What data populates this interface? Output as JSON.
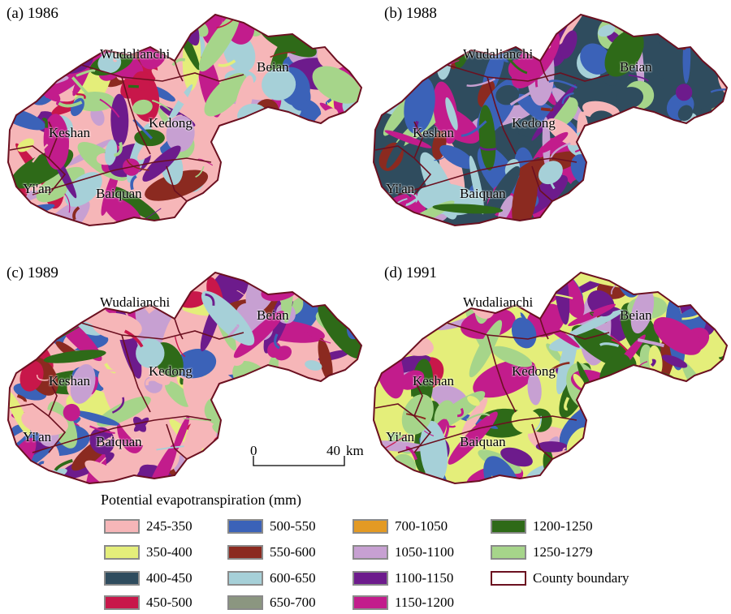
{
  "panels": [
    {
      "title": "(a) 1986",
      "scheme": "a"
    },
    {
      "title": "(b) 1988",
      "scheme": "b"
    },
    {
      "title": "(c) 1989",
      "scheme": "c"
    },
    {
      "title": "(d) 1991",
      "scheme": "d"
    }
  ],
  "counties": [
    "Wudalianchi",
    "Beian",
    "Keshan",
    "Kedong",
    "Yi'an",
    "Baiquan"
  ],
  "scalebar": {
    "start": "0",
    "end": "40",
    "unit": "km"
  },
  "legend": {
    "title": "Potential evapotranspiration (mm)",
    "items": [
      {
        "label": "245-350",
        "color": "#f6b6b8"
      },
      {
        "label": "350-400",
        "color": "#e4ee7a"
      },
      {
        "label": "400-450",
        "color": "#2f4c5e"
      },
      {
        "label": "450-500",
        "color": "#c8174a"
      },
      {
        "label": "500-550",
        "color": "#3b62b8"
      },
      {
        "label": "550-600",
        "color": "#8b2a20"
      },
      {
        "label": "600-650",
        "color": "#a6d0d8"
      },
      {
        "label": "650-700",
        "color": "#8b9680"
      },
      {
        "label": "700-1050",
        "color": "#e39a24"
      },
      {
        "label": "1050-1100",
        "color": "#c7a0d2"
      },
      {
        "label": "1100-1150",
        "color": "#6d1b8c"
      },
      {
        "label": "1150-1200",
        "color": "#c21c8c"
      },
      {
        "label": "1200-1250",
        "color": "#2e6a18"
      },
      {
        "label": "1250-1279",
        "color": "#a6d58a"
      }
    ],
    "boundary_label": "County boundary",
    "boundary_color": "#6b1020"
  }
}
